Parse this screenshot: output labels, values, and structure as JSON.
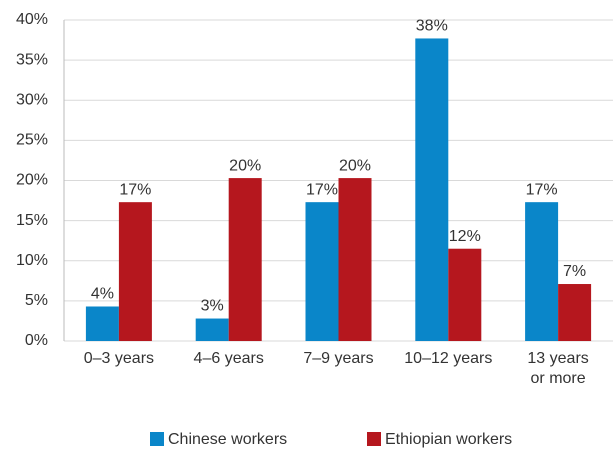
{
  "chart_data": {
    "type": "bar",
    "categories": [
      "0–3 years",
      "4–6 years",
      "7–9 years",
      "10–12 years",
      "13 years\nor more"
    ],
    "series": [
      {
        "name": "Chinese workers",
        "color": "#0a86c9",
        "values": [
          4.3,
          2.8,
          17.3,
          37.7,
          17.3
        ],
        "value_labels": [
          "4%",
          "3%",
          "17%",
          "38%",
          "17%"
        ]
      },
      {
        "name": "Ethiopian workers",
        "color": "#b5171e",
        "values": [
          17.3,
          20.3,
          20.3,
          11.5,
          7.1
        ],
        "value_labels": [
          "17%",
          "20%",
          "20%",
          "12%",
          "7%"
        ]
      }
    ],
    "ylim": [
      0,
      40
    ],
    "yticks": [
      {
        "value": 0,
        "label": "0%"
      },
      {
        "value": 5,
        "label": "5%"
      },
      {
        "value": 10,
        "label": "10%"
      },
      {
        "value": 15,
        "label": "15%"
      },
      {
        "value": 20,
        "label": "20%"
      },
      {
        "value": 25,
        "label": "25%"
      },
      {
        "value": 30,
        "label": "30%"
      },
      {
        "value": 35,
        "label": "35%"
      },
      {
        "value": 40,
        "label": "40%"
      }
    ],
    "grid": true,
    "legend": "bottom"
  }
}
